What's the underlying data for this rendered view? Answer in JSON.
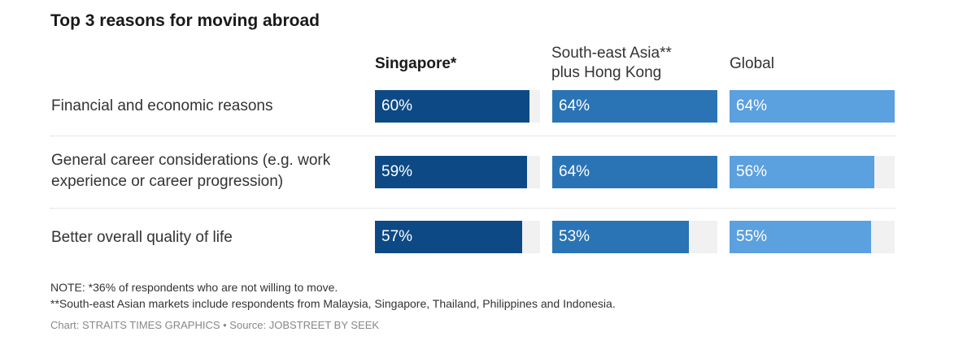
{
  "title": "Top 3 reasons for moving abroad",
  "notes": [
    "NOTE: *36% of respondents who are not willing to move.",
    "**South-east Asian markets include respondents from Malaysia, Singapore, Thailand, Philippines and Indonesia."
  ],
  "source": "Chart: STRAITS TIMES GRAPHICS • Source: JOBSTREET BY SEEK",
  "colors": {
    "Singapore": "#0d4a85",
    "SEA": "#2a74b5",
    "Global": "#5ba0df",
    "track": "#f1f1f1"
  },
  "chart_data": {
    "type": "bar",
    "title": "Top 3 reasons for moving abroad",
    "categories": [
      "Financial and economic reasons",
      "General career considerations (e.g. work\nexperience or career progression)",
      "Better overall quality of life"
    ],
    "series": [
      {
        "name": "Singapore*",
        "values": [
          60,
          59,
          57
        ],
        "value_labels": [
          "60%",
          "59%",
          "57%"
        ]
      },
      {
        "name": "South-east Asia**\nplus Hong Kong",
        "values": [
          64,
          64,
          53
        ],
        "value_labels": [
          "64%",
          "64%",
          "53%"
        ]
      },
      {
        "name": "Global",
        "values": [
          64,
          56,
          55
        ],
        "value_labels": [
          "64%",
          "56%",
          "55%"
        ]
      }
    ],
    "ylim": [
      0,
      64
    ],
    "legend": "column headers"
  }
}
